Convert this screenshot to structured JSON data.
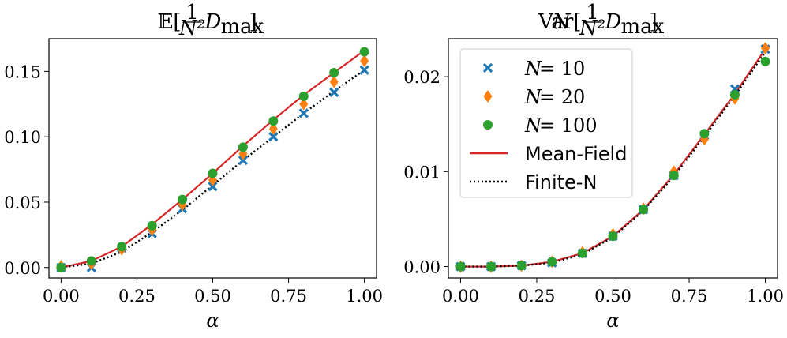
{
  "chart_data": [
    {
      "type": "scatter+line",
      "title_parts": {
        "bb": "𝔼[",
        "num": "1",
        "den": "N²",
        "d": "D",
        "sub": "max",
        "close": "]"
      },
      "xlabel": "α",
      "ylabel": "",
      "xlim": [
        -0.04,
        1.04
      ],
      "ylim": [
        -0.008,
        0.175
      ],
      "xticks": [
        0.0,
        0.25,
        0.5,
        0.75,
        1.0
      ],
      "xtick_labels": [
        "0.00",
        "0.25",
        "0.50",
        "0.75",
        "1.00"
      ],
      "yticks": [
        0.0,
        0.05,
        0.1,
        0.15
      ],
      "ytick_labels": [
        "0.00",
        "0.05",
        "0.10",
        "0.15"
      ],
      "x": [
        0.0,
        0.1,
        0.2,
        0.3,
        0.4,
        0.5,
        0.6,
        0.7,
        0.8,
        0.9,
        1.0
      ],
      "series": [
        {
          "name": "N = 10",
          "marker": "x",
          "color": "#1f77b4",
          "values": [
            0.0,
            0.0,
            0.015,
            0.026,
            0.045,
            0.062,
            0.082,
            0.1,
            0.118,
            0.134,
            0.151
          ]
        },
        {
          "name": "N = 20",
          "marker": "diamond",
          "color": "#ff7f0e",
          "values": [
            0.001,
            0.003,
            0.014,
            0.029,
            0.048,
            0.067,
            0.087,
            0.106,
            0.125,
            0.142,
            0.158
          ]
        },
        {
          "name": "N = 100",
          "marker": "circle",
          "color": "#2ca02c",
          "values": [
            0.0,
            0.005,
            0.016,
            0.032,
            0.052,
            0.072,
            0.092,
            0.112,
            0.131,
            0.149,
            0.165
          ]
        }
      ],
      "lines": [
        {
          "name": "Mean-Field",
          "style": "solid",
          "color": "#d62728",
          "values": [
            0.0,
            0.005,
            0.016,
            0.033,
            0.052,
            0.072,
            0.093,
            0.113,
            0.132,
            0.149,
            0.166
          ]
        },
        {
          "name": "Finite-N",
          "style": "dotted",
          "color": "#000000",
          "values": [
            0.0,
            0.003,
            0.012,
            0.027,
            0.044,
            0.063,
            0.082,
            0.1,
            0.118,
            0.135,
            0.151
          ]
        }
      ]
    },
    {
      "type": "scatter+line",
      "title_parts": {
        "n": "N",
        "var": "Var[",
        "num": "1",
        "den": "N²",
        "d": "D",
        "sub": "max",
        "close": "]"
      },
      "xlabel": "α",
      "ylabel": "",
      "xlim": [
        -0.04,
        1.04
      ],
      "ylim": [
        -0.0012,
        0.024
      ],
      "xticks": [
        0.0,
        0.25,
        0.5,
        0.75,
        1.0
      ],
      "xtick_labels": [
        "0.00",
        "0.25",
        "0.50",
        "0.75",
        "1.00"
      ],
      "yticks": [
        0.0,
        0.01,
        0.02
      ],
      "ytick_labels": [
        "0.00",
        "0.01",
        "0.02"
      ],
      "x": [
        0.0,
        0.1,
        0.2,
        0.3,
        0.4,
        0.5,
        0.6,
        0.7,
        0.8,
        0.9,
        1.0
      ],
      "series": [
        {
          "name": "N = 10",
          "marker": "x",
          "color": "#1f77b4",
          "values": [
            0.0,
            0.0,
            0.0001,
            0.0004,
            0.0014,
            0.0032,
            0.006,
            0.0096,
            0.0138,
            0.0187,
            0.0229
          ]
        },
        {
          "name": "N = 20",
          "marker": "diamond",
          "color": "#ff7f0e",
          "values": [
            0.0,
            0.0,
            0.0001,
            0.0005,
            0.0015,
            0.0034,
            0.0061,
            0.01,
            0.0134,
            0.0177,
            0.023
          ]
        },
        {
          "name": "N = 100",
          "marker": "circle",
          "color": "#2ca02c",
          "values": [
            0.0,
            0.0,
            0.0001,
            0.0005,
            0.0014,
            0.0032,
            0.006,
            0.0096,
            0.014,
            0.0181,
            0.0216
          ]
        }
      ],
      "lines": [
        {
          "name": "Mean-Field",
          "style": "solid",
          "color": "#d62728",
          "values": [
            0.0,
            0.0,
            0.0001,
            0.0005,
            0.0014,
            0.0032,
            0.006,
            0.0097,
            0.0139,
            0.0182,
            0.0229
          ]
        },
        {
          "name": "Finite-N",
          "style": "dotted",
          "color": "#000000",
          "values": [
            0.0,
            0.0,
            0.0001,
            0.0004,
            0.0013,
            0.0031,
            0.0059,
            0.0095,
            0.0137,
            0.018,
            0.0226
          ]
        }
      ],
      "legend": {
        "position": "top-left",
        "entries": [
          {
            "name_parts": {
              "n": "N",
              "eq": " = 10"
            },
            "marker": "x",
            "color": "#1f77b4"
          },
          {
            "name_parts": {
              "n": "N",
              "eq": " = 20"
            },
            "marker": "diamond",
            "color": "#ff7f0e"
          },
          {
            "name_parts": {
              "n": "N",
              "eq": " = 100"
            },
            "marker": "circle",
            "color": "#2ca02c"
          },
          {
            "name": "Mean-Field",
            "line": "solid",
            "color": "#d62728"
          },
          {
            "name": "Finite-N",
            "line": "dotted",
            "color": "#000000"
          }
        ]
      }
    }
  ]
}
